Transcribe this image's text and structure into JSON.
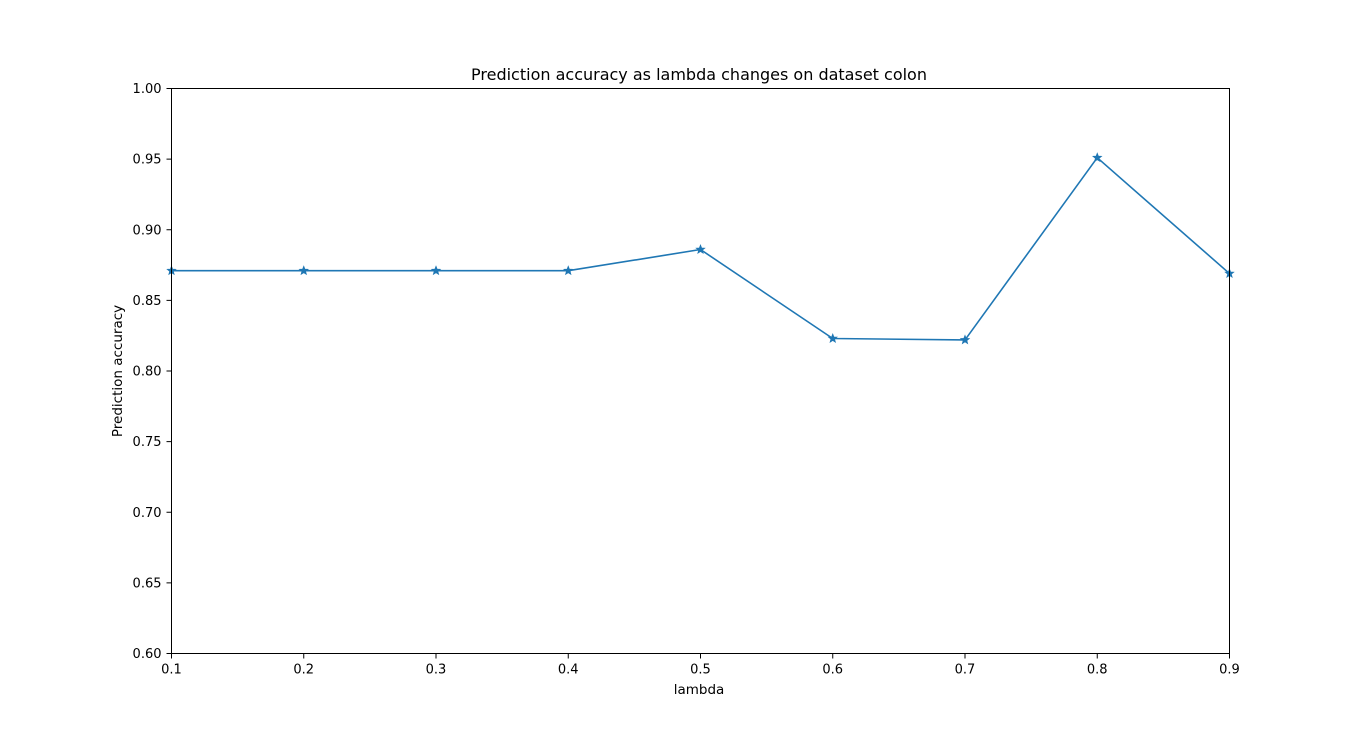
{
  "chart_data": {
    "type": "line",
    "title": "Prediction accuracy as lambda changes on dataset colon",
    "xlabel": "lambda",
    "ylabel": "Prediction accuracy",
    "xlim": [
      0.1,
      0.9
    ],
    "ylim": [
      0.6,
      1.0
    ],
    "xticks": [
      "0.1",
      "0.2",
      "0.3",
      "0.4",
      "0.5",
      "0.6",
      "0.7",
      "0.8",
      "0.9"
    ],
    "yticks": [
      "0.60",
      "0.65",
      "0.70",
      "0.75",
      "0.80",
      "0.85",
      "0.90",
      "0.95",
      "1.00"
    ],
    "grid": false,
    "series": [
      {
        "color": "#1f77b4",
        "marker": "star",
        "x": [
          0.1,
          0.2,
          0.3,
          0.4,
          0.5,
          0.6,
          0.7,
          0.8,
          0.9
        ],
        "y": [
          0.871,
          0.871,
          0.871,
          0.871,
          0.886,
          0.823,
          0.822,
          0.951,
          0.869
        ]
      }
    ]
  }
}
